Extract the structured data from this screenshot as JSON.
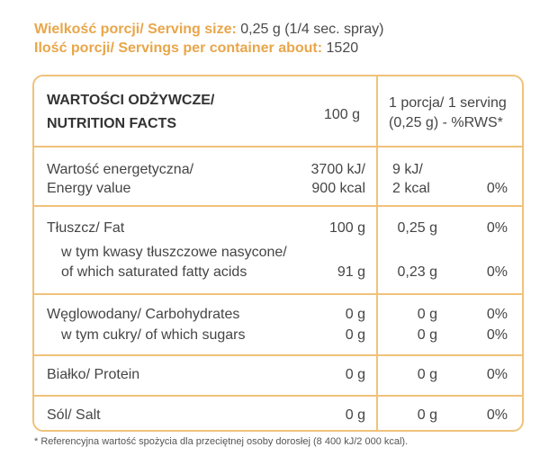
{
  "serving": {
    "size_label": "Wielkość porcji/ Serving size:",
    "size_value": "0,25 g (1/4 sec. spray)",
    "count_label": "Ilość porcji/ Servings per container about:",
    "count_value": "1520"
  },
  "header": {
    "title_line1": "WARTOŚCI ODŻYWCZE/",
    "title_line2": "NUTRITION FACTS",
    "per100": "100 g",
    "serving_line1": "1 porcja/ 1 serving",
    "serving_line2": "(0,25 g) - %RWS*"
  },
  "rows": {
    "energy": {
      "label1": "Wartość energetyczna/",
      "label2": "Energy value",
      "per100_line1": "3700 kJ/",
      "per100_line2": "900 kcal",
      "serv_line1": "9 kJ/",
      "serv_line2": "2 kcal",
      "rws": "0%"
    },
    "fat": {
      "label": "Tłuszcz/ Fat",
      "per100": "100 g",
      "serv": "0,25 g",
      "rws": "0%"
    },
    "saturated": {
      "label1": "w tym kwasy tłuszczowe nasycone/",
      "label2": "of which saturated fatty acids",
      "per100": "91 g",
      "serv": "0,23 g",
      "rws": "0%"
    },
    "carbs": {
      "label": "Węglowodany/ Carbohydrates",
      "per100": "0 g",
      "serv": "0 g",
      "rws": "0%"
    },
    "sugars": {
      "label": "w tym cukry/ of which sugars",
      "per100": "0 g",
      "serv": "0 g",
      "rws": "0%"
    },
    "protein": {
      "label": "Białko/ Protein",
      "per100": "0 g",
      "serv": "0 g",
      "rws": "0%"
    },
    "salt": {
      "label": "Sól/ Salt",
      "per100": "0 g",
      "serv": "0 g",
      "rws": "0%"
    }
  },
  "footnote": "* Referencyjna wartość spożycia dla przeciętnej osoby dorosłej (8 400 kJ/2 000 kcal).",
  "colors": {
    "accent": "#e9a64a",
    "border": "#f0c27a"
  }
}
